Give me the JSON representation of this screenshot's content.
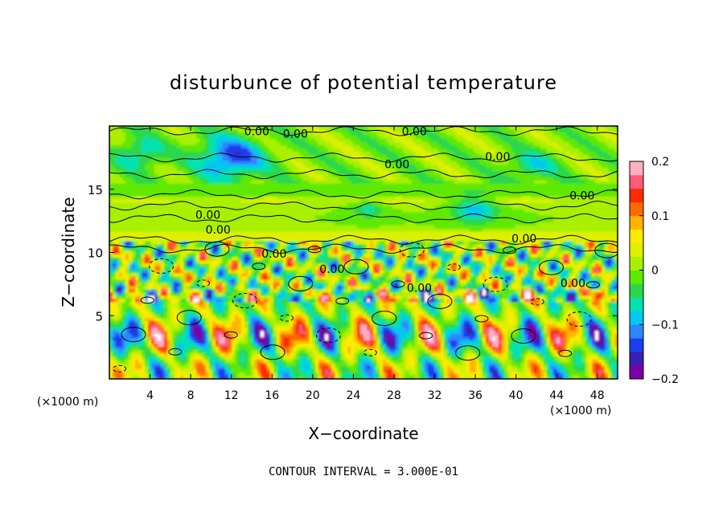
{
  "chart_data": {
    "type": "heatmap",
    "title": "disturbunce of potential temperature",
    "xlabel": "X−coordinate",
    "ylabel": "Z−coordinate",
    "x_unit": "(×1000 m)",
    "z_unit": "(×1000 m)",
    "xlim": [
      0,
      50
    ],
    "ylim": [
      0,
      20
    ],
    "x_ticks": [
      4,
      8,
      12,
      16,
      20,
      24,
      28,
      32,
      36,
      40,
      44,
      48
    ],
    "y_ticks": [
      5,
      10,
      15
    ],
    "colorbar": {
      "range": [
        -0.2,
        0.2
      ],
      "ticks": [
        0.2,
        0.1,
        0,
        -0.1,
        -0.2
      ],
      "tick_labels": [
        "0.2",
        "0.1",
        "0",
        "−0.1",
        "−0.2"
      ],
      "colors": [
        "#7b00a8",
        "#3a1fb5",
        "#1a3ef0",
        "#2e86ff",
        "#00c8f0",
        "#00e3b0",
        "#2ad84a",
        "#5fe800",
        "#a8f000",
        "#dcf000",
        "#ffea00",
        "#ffb400",
        "#ff6a00",
        "#ff2a00",
        "#ff5a78",
        "#ffb0c0"
      ]
    },
    "contour_labels": [
      {
        "text": "0.00",
        "x": 14.5,
        "z": 19.6
      },
      {
        "text": "0.00",
        "x": 18.3,
        "z": 19.4
      },
      {
        "text": "0.00",
        "x": 30.0,
        "z": 19.6
      },
      {
        "text": "0.00",
        "x": 38.2,
        "z": 17.6
      },
      {
        "text": "0.00",
        "x": 28.3,
        "z": 17.0
      },
      {
        "text": "0.00",
        "x": 46.5,
        "z": 14.5
      },
      {
        "text": "0.00",
        "x": 9.7,
        "z": 13.0
      },
      {
        "text": "0.00",
        "x": 10.7,
        "z": 11.8
      },
      {
        "text": "0.00",
        "x": 16.2,
        "z": 9.9
      },
      {
        "text": "0.00",
        "x": 21.9,
        "z": 8.7
      },
      {
        "text": "0.00",
        "x": 30.5,
        "z": 7.2
      },
      {
        "text": "0.00",
        "x": 40.8,
        "z": 11.1
      },
      {
        "text": "0.00",
        "x": 45.6,
        "z": 7.6
      }
    ],
    "notes": [
      "CONTOUR INTERVAL = 3.000E-01"
    ]
  }
}
